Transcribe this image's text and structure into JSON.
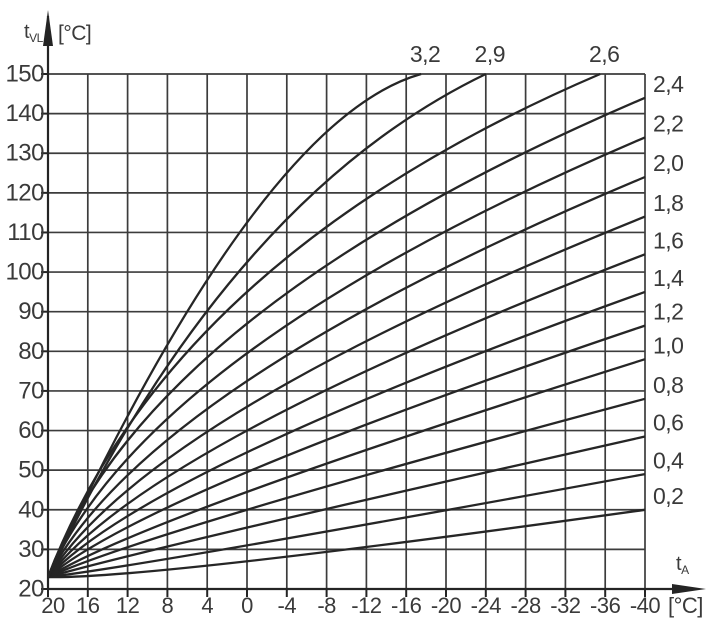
{
  "chart_data": {
    "type": "line",
    "title": "",
    "description": "Heating curve diagram: flow temperature versus outside temperature for curve slopes 0,2 to 3,2",
    "x_axis": {
      "symbol": "t",
      "symbol_sub": "A",
      "unit": "[°C]",
      "range": [
        20,
        -40
      ],
      "ticks": [
        20,
        16,
        12,
        8,
        4,
        0,
        -4,
        -8,
        -12,
        -16,
        -20,
        -24,
        -28,
        -32,
        -36,
        -40
      ],
      "grid": true
    },
    "y_axis": {
      "symbol": "t",
      "symbol_sub": "VL",
      "unit": "[°C]",
      "range": [
        20,
        150
      ],
      "ticks": [
        150,
        140,
        130,
        120,
        110,
        100,
        90,
        80,
        70,
        60,
        50,
        40,
        30,
        20
      ],
      "grid": true
    },
    "series": [
      {
        "label": "0,2",
        "label_side": "right",
        "anchors": [
          [
            20,
            23
          ],
          [
            0,
            27
          ],
          [
            -40,
            40
          ]
        ]
      },
      {
        "label": "0,4",
        "label_side": "right",
        "anchors": [
          [
            20,
            23
          ],
          [
            0,
            31
          ],
          [
            -40,
            49
          ]
        ]
      },
      {
        "label": "0,6",
        "label_side": "right",
        "anchors": [
          [
            20,
            23
          ],
          [
            0,
            35.5
          ],
          [
            -40,
            58.5
          ]
        ]
      },
      {
        "label": "0,8",
        "label_side": "right",
        "anchors": [
          [
            20,
            23
          ],
          [
            0,
            40
          ],
          [
            -40,
            68
          ]
        ]
      },
      {
        "label": "1,0",
        "label_side": "right",
        "anchors": [
          [
            20,
            23
          ],
          [
            0,
            44.5
          ],
          [
            -40,
            78
          ]
        ]
      },
      {
        "label": "1,2",
        "label_side": "right",
        "anchors": [
          [
            20,
            23
          ],
          [
            0,
            49.5
          ],
          [
            -40,
            86.5
          ]
        ]
      },
      {
        "label": "1,4",
        "label_side": "right",
        "anchors": [
          [
            20,
            23
          ],
          [
            0,
            54.5
          ],
          [
            -40,
            95
          ]
        ]
      },
      {
        "label": "1,6",
        "label_side": "right",
        "anchors": [
          [
            20,
            23
          ],
          [
            0,
            60
          ],
          [
            -40,
            104.5
          ]
        ]
      },
      {
        "label": "1,8",
        "label_side": "right",
        "anchors": [
          [
            20,
            23
          ],
          [
            0,
            66
          ],
          [
            -40,
            114
          ]
        ]
      },
      {
        "label": "2,0",
        "label_side": "right",
        "anchors": [
          [
            20,
            23
          ],
          [
            0,
            72.5
          ],
          [
            -40,
            124
          ]
        ]
      },
      {
        "label": "2,2",
        "label_side": "right",
        "anchors": [
          [
            20,
            23
          ],
          [
            0,
            79.5
          ],
          [
            -40,
            134
          ]
        ]
      },
      {
        "label": "2,4",
        "label_side": "right",
        "anchors": [
          [
            20,
            23
          ],
          [
            0,
            87
          ],
          [
            -40,
            144
          ]
        ]
      },
      {
        "label": "2,6",
        "label_side": "top",
        "anchors": [
          [
            20,
            23
          ],
          [
            0,
            95
          ],
          [
            -35.5,
            150
          ]
        ]
      },
      {
        "label": "2,9",
        "label_side": "top",
        "anchors": [
          [
            20,
            23
          ],
          [
            0,
            102.5
          ],
          [
            -24,
            150
          ]
        ]
      },
      {
        "label": "3,2",
        "label_side": "top",
        "anchors": [
          [
            20,
            23
          ],
          [
            0,
            112.5
          ],
          [
            -17.5,
            150
          ]
        ]
      }
    ],
    "legend_position": "curve-end-labels"
  },
  "colors": {
    "background": "#ffffff",
    "grid": "#3c3c3c",
    "axis": "#242424",
    "curve": "#262626",
    "text": "#3a3a3a"
  }
}
